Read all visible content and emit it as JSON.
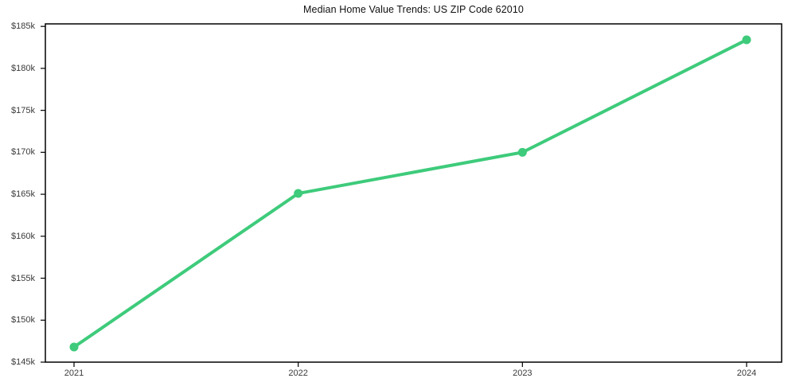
{
  "chart_data": {
    "type": "line",
    "title": "Median Home Value Trends: US ZIP Code 62010",
    "x": [
      2021,
      2022,
      2023,
      2024
    ],
    "xtick_labels": [
      "2021",
      "2022",
      "2023",
      "2024"
    ],
    "series": [
      {
        "name": "Median Home Value",
        "values": [
          146800,
          165100,
          170000,
          183400
        ],
        "color": "#3ecb7b",
        "marker": "circle"
      }
    ],
    "xlabel": "",
    "ylabel": "",
    "ylim": [
      145000,
      185300
    ],
    "yticks": [
      {
        "value": 145000,
        "label": "$145k"
      },
      {
        "value": 150000,
        "label": "$150k"
      },
      {
        "value": 155000,
        "label": "$155k"
      },
      {
        "value": 160000,
        "label": "$160k"
      },
      {
        "value": 165000,
        "label": "$165k"
      },
      {
        "value": 170000,
        "label": "$170k"
      },
      {
        "value": 175000,
        "label": "$175k"
      },
      {
        "value": 180000,
        "label": "$180k"
      },
      {
        "value": 185000,
        "label": "$185k"
      }
    ],
    "grid": false,
    "legend": false,
    "colors": {
      "line": "#3ecb7b",
      "axis": "#000000",
      "tick_label": "#3a3a3a",
      "title": "#111111",
      "background": "#ffffff"
    }
  }
}
